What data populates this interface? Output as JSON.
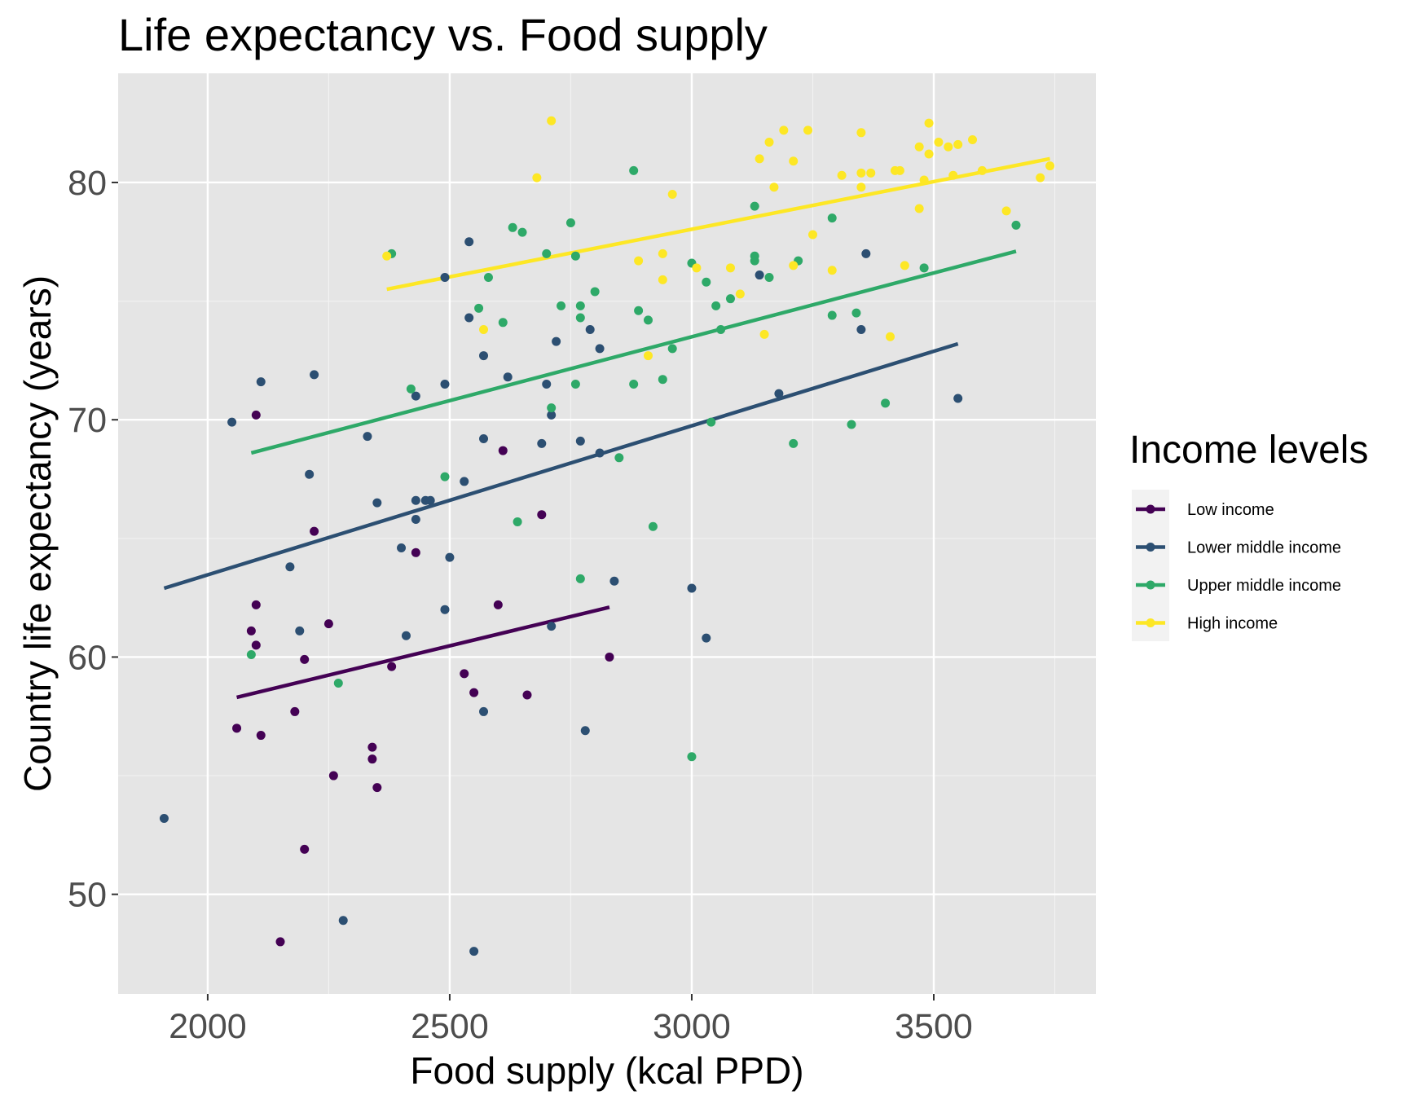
{
  "chart_data": {
    "type": "scatter",
    "title": "Life expectancy vs. Food supply",
    "xlabel": "Food supply (kcal PPD)",
    "ylabel": "Country life expectancy (years)",
    "xlim": [
      1815,
      3835
    ],
    "ylim": [
      45.8,
      84.6
    ],
    "x_ticks": [
      2000,
      2500,
      3000,
      3500
    ],
    "y_ticks": [
      50,
      60,
      70,
      80
    ],
    "x_tick_labels": [
      "2000",
      "2500",
      "3000",
      "3500"
    ],
    "y_tick_labels": [
      "50",
      "60",
      "70",
      "80"
    ],
    "grid": true,
    "legend": {
      "title": "Income levels",
      "position": "right"
    },
    "series": [
      {
        "name": "Low income",
        "color": "#440154",
        "trend": [
          [
            2060,
            58.3
          ],
          [
            2830,
            62.1
          ]
        ],
        "points": [
          [
            2100,
            70.2
          ],
          [
            2220,
            65.3
          ],
          [
            2100,
            62.2
          ],
          [
            2250,
            61.4
          ],
          [
            2090,
            61.1
          ],
          [
            2100,
            60.5
          ],
          [
            2200,
            59.9
          ],
          [
            2380,
            59.6
          ],
          [
            2180,
            57.7
          ],
          [
            2060,
            57.0
          ],
          [
            2110,
            56.7
          ],
          [
            2340,
            56.2
          ],
          [
            2340,
            55.7
          ],
          [
            2260,
            55.0
          ],
          [
            2350,
            54.5
          ],
          [
            2200,
            51.9
          ],
          [
            2150,
            48.0
          ],
          [
            2430,
            64.4
          ],
          [
            2610,
            68.7
          ],
          [
            2690,
            66.0
          ],
          [
            2600,
            62.2
          ],
          [
            2530,
            59.3
          ],
          [
            2550,
            58.5
          ],
          [
            2660,
            58.4
          ],
          [
            2830,
            60.0
          ]
        ]
      },
      {
        "name": "Lower middle income",
        "color": "#2c4f72",
        "trend": [
          [
            1910,
            62.9
          ],
          [
            3550,
            73.2
          ]
        ],
        "points": [
          [
            1910,
            53.2
          ],
          [
            2050,
            69.9
          ],
          [
            2110,
            71.6
          ],
          [
            2220,
            71.9
          ],
          [
            2210,
            67.7
          ],
          [
            2170,
            63.8
          ],
          [
            2190,
            61.1
          ],
          [
            2280,
            48.9
          ],
          [
            2330,
            69.3
          ],
          [
            2350,
            66.5
          ],
          [
            2400,
            64.6
          ],
          [
            2410,
            60.9
          ],
          [
            2430,
            71.0
          ],
          [
            2430,
            66.6
          ],
          [
            2430,
            65.8
          ],
          [
            2450,
            66.6
          ],
          [
            2460,
            66.6
          ],
          [
            2490,
            76.0
          ],
          [
            2490,
            71.5
          ],
          [
            2490,
            62.0
          ],
          [
            2500,
            64.2
          ],
          [
            2530,
            67.4
          ],
          [
            2540,
            77.5
          ],
          [
            2540,
            74.3
          ],
          [
            2570,
            72.7
          ],
          [
            2570,
            69.2
          ],
          [
            2570,
            57.7
          ],
          [
            2550,
            47.6
          ],
          [
            2620,
            71.8
          ],
          [
            2690,
            69.0
          ],
          [
            2700,
            71.5
          ],
          [
            2710,
            70.2
          ],
          [
            2710,
            61.3
          ],
          [
            2720,
            73.3
          ],
          [
            2770,
            69.1
          ],
          [
            2780,
            56.9
          ],
          [
            2790,
            73.8
          ],
          [
            2810,
            73.0
          ],
          [
            2810,
            68.6
          ],
          [
            2840,
            63.2
          ],
          [
            3000,
            62.9
          ],
          [
            3030,
            60.8
          ],
          [
            3140,
            76.1
          ],
          [
            3180,
            71.1
          ],
          [
            3360,
            77.0
          ],
          [
            3350,
            73.8
          ],
          [
            3550,
            70.9
          ]
        ]
      },
      {
        "name": "Upper middle income",
        "color": "#2ea968",
        "trend": [
          [
            2090,
            68.6
          ],
          [
            3670,
            77.1
          ]
        ],
        "points": [
          [
            2090,
            60.1
          ],
          [
            2270,
            58.9
          ],
          [
            2380,
            77.0
          ],
          [
            2420,
            71.3
          ],
          [
            2490,
            67.6
          ],
          [
            2560,
            74.7
          ],
          [
            2580,
            76.0
          ],
          [
            2610,
            74.1
          ],
          [
            2630,
            78.1
          ],
          [
            2650,
            77.9
          ],
          [
            2640,
            65.7
          ],
          [
            2700,
            77.0
          ],
          [
            2710,
            70.5
          ],
          [
            2730,
            74.8
          ],
          [
            2750,
            78.3
          ],
          [
            2760,
            76.9
          ],
          [
            2760,
            71.5
          ],
          [
            2770,
            74.8
          ],
          [
            2770,
            74.3
          ],
          [
            2770,
            63.3
          ],
          [
            2800,
            75.4
          ],
          [
            2850,
            68.4
          ],
          [
            2880,
            80.5
          ],
          [
            2880,
            71.5
          ],
          [
            2890,
            74.6
          ],
          [
            2910,
            74.2
          ],
          [
            2920,
            65.5
          ],
          [
            2940,
            71.7
          ],
          [
            2960,
            73.0
          ],
          [
            3000,
            76.6
          ],
          [
            3000,
            55.8
          ],
          [
            3030,
            75.8
          ],
          [
            3040,
            69.9
          ],
          [
            3050,
            74.8
          ],
          [
            3060,
            73.8
          ],
          [
            3080,
            75.1
          ],
          [
            3130,
            79.0
          ],
          [
            3130,
            76.9
          ],
          [
            3130,
            76.7
          ],
          [
            3160,
            76.0
          ],
          [
            3210,
            69.0
          ],
          [
            3220,
            76.7
          ],
          [
            3290,
            78.5
          ],
          [
            3290,
            74.4
          ],
          [
            3330,
            69.8
          ],
          [
            3340,
            74.5
          ],
          [
            3400,
            70.7
          ],
          [
            3480,
            76.4
          ],
          [
            3670,
            78.2
          ]
        ]
      },
      {
        "name": "High income",
        "color": "#fde725",
        "trend": [
          [
            2370,
            75.5
          ],
          [
            3740,
            81.0
          ]
        ],
        "points": [
          [
            2370,
            76.9
          ],
          [
            2570,
            73.8
          ],
          [
            2680,
            80.2
          ],
          [
            2710,
            82.6
          ],
          [
            2890,
            76.7
          ],
          [
            2910,
            72.7
          ],
          [
            2940,
            77.0
          ],
          [
            2940,
            75.9
          ],
          [
            2960,
            79.5
          ],
          [
            3010,
            76.4
          ],
          [
            3080,
            76.4
          ],
          [
            3100,
            75.3
          ],
          [
            3140,
            81.0
          ],
          [
            3150,
            73.6
          ],
          [
            3160,
            81.7
          ],
          [
            3170,
            79.8
          ],
          [
            3190,
            82.2
          ],
          [
            3210,
            80.9
          ],
          [
            3210,
            76.5
          ],
          [
            3240,
            82.2
          ],
          [
            3250,
            77.8
          ],
          [
            3290,
            76.3
          ],
          [
            3310,
            80.3
          ],
          [
            3350,
            82.1
          ],
          [
            3350,
            80.4
          ],
          [
            3350,
            79.8
          ],
          [
            3370,
            80.4
          ],
          [
            3410,
            73.5
          ],
          [
            3420,
            80.5
          ],
          [
            3430,
            80.5
          ],
          [
            3440,
            76.5
          ],
          [
            3470,
            81.5
          ],
          [
            3470,
            78.9
          ],
          [
            3480,
            80.1
          ],
          [
            3490,
            82.5
          ],
          [
            3490,
            81.2
          ],
          [
            3510,
            81.7
          ],
          [
            3530,
            81.5
          ],
          [
            3540,
            80.3
          ],
          [
            3550,
            81.6
          ],
          [
            3580,
            81.8
          ],
          [
            3600,
            80.5
          ],
          [
            3650,
            78.8
          ],
          [
            3720,
            80.2
          ],
          [
            3740,
            80.7
          ]
        ]
      }
    ]
  }
}
